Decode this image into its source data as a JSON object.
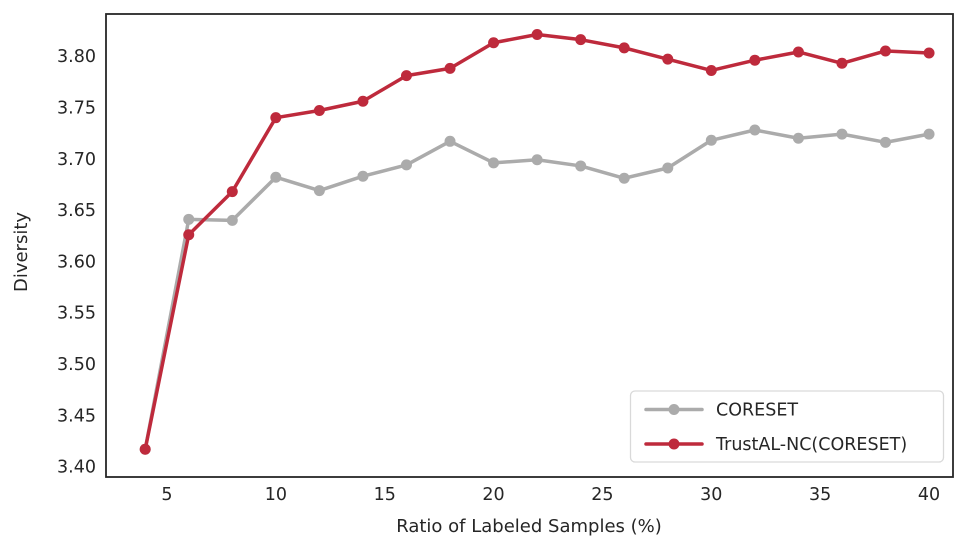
{
  "figure": {
    "background": "#ffffff",
    "frame_color": "#262626",
    "text_color": "#262626",
    "legend_border_color": "#d9d9d9",
    "legend_background": "#ffffff"
  },
  "chart_data": {
    "type": "line",
    "title": "",
    "xlabel": "Ratio of Labeled Samples (%)",
    "ylabel": "Diversity",
    "x": [
      4,
      6,
      8,
      10,
      12,
      14,
      16,
      18,
      20,
      22,
      24,
      26,
      28,
      30,
      32,
      34,
      36,
      38,
      40
    ],
    "series": [
      {
        "name": "CORESET",
        "color": "#ababab",
        "values": [
          3.417,
          3.641,
          3.64,
          3.682,
          3.669,
          3.683,
          3.694,
          3.717,
          3.696,
          3.699,
          3.693,
          3.681,
          3.691,
          3.718,
          3.728,
          3.72,
          3.724,
          3.716,
          3.724
        ]
      },
      {
        "name": "TrustAL-NC(CORESET)",
        "color": "#be2a3c",
        "values": [
          3.417,
          3.626,
          3.668,
          3.74,
          3.747,
          3.756,
          3.781,
          3.788,
          3.813,
          3.821,
          3.816,
          3.808,
          3.797,
          3.786,
          3.796,
          3.804,
          3.793,
          3.805,
          3.803
        ]
      }
    ],
    "xlim": [
      2.2,
      41.1
    ],
    "ylim": [
      3.39,
      3.841
    ],
    "xticks": [
      5,
      10,
      15,
      20,
      25,
      30,
      35,
      40
    ],
    "yticks": [
      "3.40",
      "3.45",
      "3.50",
      "3.55",
      "3.60",
      "3.65",
      "3.70",
      "3.75",
      "3.80"
    ],
    "grid": false,
    "legend_position": "lower right",
    "line_width": 3.5,
    "marker_radius": 5.5
  }
}
